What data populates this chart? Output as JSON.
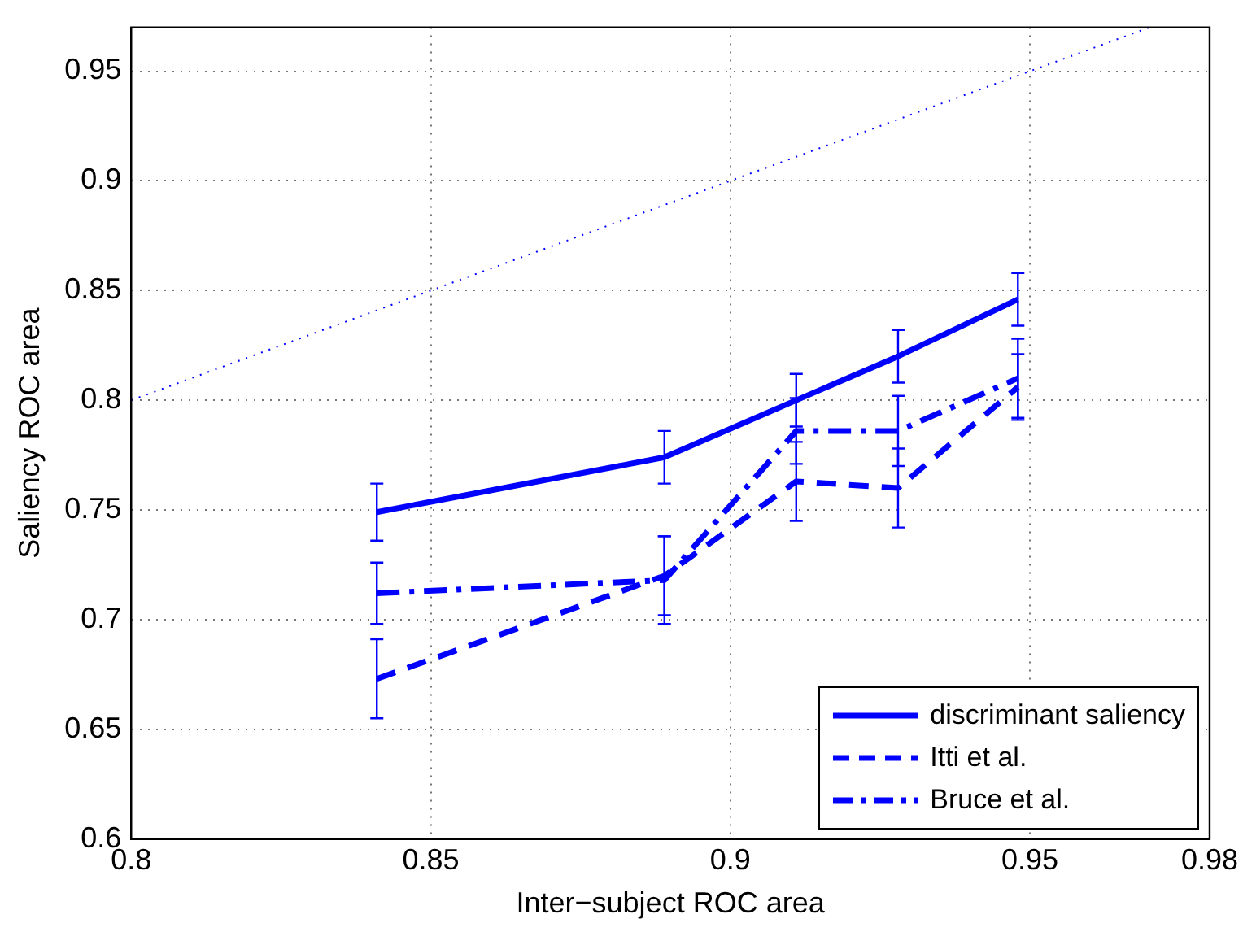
{
  "chart_data": {
    "type": "line",
    "xlabel": "Inter−subject ROC area",
    "ylabel": "Saliency ROC area",
    "x": [
      0.841,
      0.889,
      0.911,
      0.928,
      0.948
    ],
    "series": [
      {
        "name": "discriminant saliency",
        "color": "#0000ff",
        "line_style": "solid",
        "values": [
          0.749,
          0.774,
          0.8,
          0.82,
          0.846
        ],
        "errors": [
          0.013,
          0.012,
          0.012,
          0.012,
          0.012
        ]
      },
      {
        "name": "Itti et al.",
        "color": "#0000ff",
        "line_style": "dashed",
        "values": [
          0.673,
          0.72,
          0.763,
          0.76,
          0.806
        ],
        "errors": [
          0.018,
          0.018,
          0.018,
          0.018,
          0.015
        ]
      },
      {
        "name": "Bruce et al.",
        "color": "#0000ff",
        "line_style": "dashdot",
        "values": [
          0.712,
          0.718,
          0.786,
          0.786,
          0.81
        ],
        "errors": [
          0.014,
          0.02,
          0.015,
          0.016,
          0.018
        ]
      },
      {
        "color": "#0000ff",
        "line_style": "dotted",
        "x": [
          0.8,
          0.97
        ],
        "values": [
          0.8,
          0.97
        ]
      }
    ],
    "xlim": [
      0.8,
      0.98
    ],
    "xticks": [
      0.8,
      0.85,
      0.9,
      0.95,
      0.98
    ],
    "ylim": [
      0.6,
      0.97
    ],
    "yticks": [
      0.6,
      0.65,
      0.7,
      0.75,
      0.8,
      0.85,
      0.9,
      0.95
    ],
    "grid": true,
    "legend": "bottom right",
    "marker": "none"
  }
}
